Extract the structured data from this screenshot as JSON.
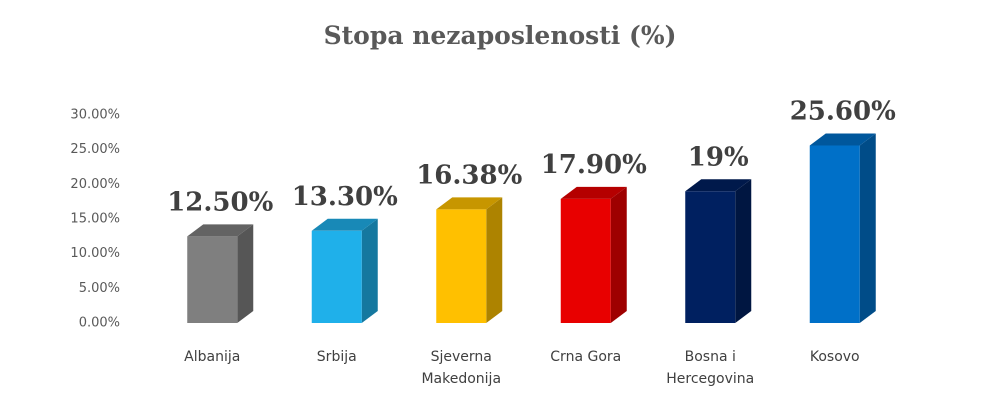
{
  "chart_data": {
    "type": "bar3d",
    "title": "Stopa nezaposlenosti (%)",
    "categories": [
      "Albanija",
      "Srbija",
      "Sjeverna Makedonija",
      "Crna Gora",
      "Bosna i Hercegovina",
      "Kosovo"
    ],
    "values": [
      12.5,
      13.3,
      16.38,
      17.9,
      19,
      25.6
    ],
    "value_labels": [
      "12.50%",
      "13.30%",
      "16.38%",
      "17.90%",
      "19%",
      "25.60%"
    ],
    "colors": [
      "#7f7f7f",
      "#1fb0ea",
      "#ffc000",
      "#e80000",
      "#002060",
      "#0070c8"
    ],
    "ylim": [
      0,
      30
    ],
    "yticks": [
      {
        "value": 0,
        "label": "0.00%"
      },
      {
        "value": 5,
        "label": "5.00%"
      },
      {
        "value": 10,
        "label": "10.00%"
      },
      {
        "value": 15,
        "label": "15.00%"
      },
      {
        "value": 20,
        "label": "20.00%"
      },
      {
        "value": 25,
        "label": "25.00%"
      },
      {
        "value": 30,
        "label": "30.00%"
      }
    ]
  }
}
